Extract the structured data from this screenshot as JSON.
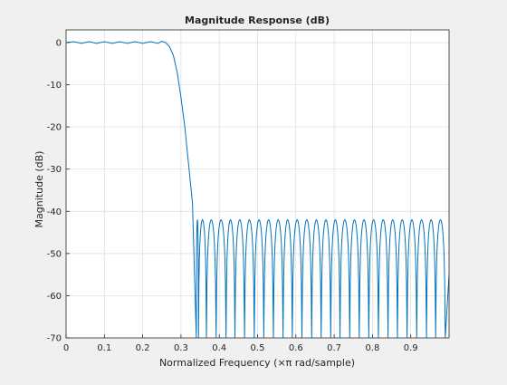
{
  "figure": {
    "background": "#f0f0f0",
    "plot_background": "#ffffff",
    "line_color": "#0072bd",
    "grid_color": "#dcdcdc"
  },
  "chart_data": {
    "type": "line",
    "title": "Magnitude Response (dB)",
    "xlabel": "Normalized Frequency (×π rad/sample)",
    "ylabel": "Magnitude (dB)",
    "xlim": [
      0,
      1
    ],
    "ylim": [
      -70,
      3
    ],
    "grid": true,
    "xticks": [
      0,
      0.1,
      0.2,
      0.3,
      0.4,
      0.5,
      0.6,
      0.7,
      0.8,
      0.9
    ],
    "xtick_labels": [
      "0",
      "0.1",
      "0.2",
      "0.3",
      "0.4",
      "0.5",
      "0.6",
      "0.7",
      "0.8",
      "0.9"
    ],
    "yticks": [
      0,
      -10,
      -20,
      -30,
      -40,
      -50,
      -60,
      -70
    ],
    "ytick_labels": [
      "0",
      "-10",
      "-20",
      "-30",
      "-40",
      "-50",
      "-60",
      "-70"
    ],
    "series": [
      {
        "name": "",
        "passband": {
          "x": [
            0,
            0.02,
            0.04,
            0.06,
            0.08,
            0.1,
            0.12,
            0.14,
            0.16,
            0.18,
            0.2,
            0.22,
            0.24,
            0.25,
            0.26
          ],
          "y": [
            0,
            0.2,
            -0.2,
            0.2,
            -0.2,
            0.2,
            -0.2,
            0.2,
            -0.2,
            0.2,
            -0.2,
            0.2,
            -0.2,
            0.3,
            0
          ]
        },
        "transition": {
          "x": [
            0.26,
            0.27,
            0.28,
            0.29,
            0.3,
            0.31,
            0.32,
            0.33,
            0.34
          ],
          "y": [
            0,
            -1,
            -3,
            -7,
            -13,
            -20,
            -29,
            -38,
            -70
          ]
        },
        "stopband": {
          "nulls_x": [
            0.34,
            0.3457,
            0.3665,
            0.3917,
            0.4176,
            0.4409,
            0.466,
            0.4913,
            0.5163,
            0.5413,
            0.5665,
            0.5906,
            0.6158,
            0.6413,
            0.666,
            0.691,
            0.7152,
            0.7406,
            0.7655,
            0.7904,
            0.8155,
            0.8406,
            0.8652,
            0.8904,
            0.9155,
            0.9411,
            0.965,
            0.9901
          ],
          "peak_level_db": -42,
          "null_depth_db": -70
        }
      }
    ]
  }
}
